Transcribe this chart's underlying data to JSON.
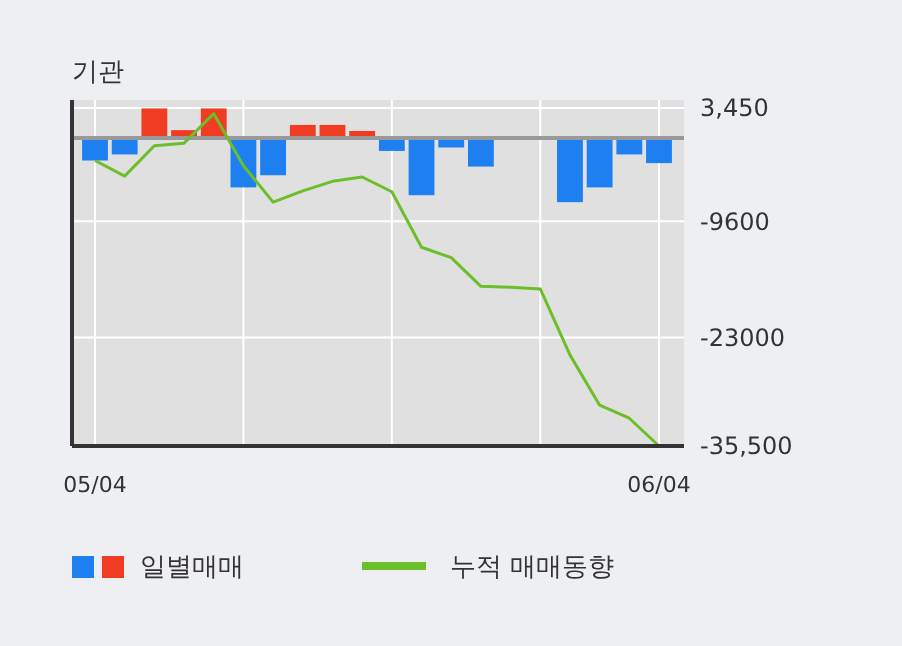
{
  "chart_data": {
    "type": "bar",
    "title": "기관",
    "categories": [
      "05/04",
      null,
      null,
      null,
      null,
      null,
      null,
      null,
      null,
      null,
      null,
      null,
      null,
      null,
      null,
      null,
      null,
      null,
      null,
      "06/04"
    ],
    "series": [
      {
        "name": "일별매매",
        "colors": [
          "#1e7ff0",
          "#1e7ff0",
          "#f03c22",
          "#f03c22",
          "#f03c22",
          "#1e7ff0",
          "#1e7ff0",
          "#f03c22",
          "#f03c22",
          "#f03c22",
          "#1e7ff0",
          "#1e7ff0",
          "#1e7ff0",
          "#1e7ff0",
          "#1e7ff0",
          "#1e7ff0",
          "#1e7ff0",
          "#1e7ff0",
          "#1e7ff0",
          "#1e7ff0"
        ],
        "values": [
          -2600,
          -1900,
          3400,
          900,
          3400,
          -5700,
          -4300,
          1500,
          1500,
          800,
          -1500,
          -6600,
          -1100,
          -3300,
          0,
          0,
          -7400,
          -5700,
          -1900,
          -2900
        ]
      },
      {
        "name": "누적 매매동향",
        "type": "line",
        "color": "#6cbf2a",
        "values": [
          -2600,
          -4400,
          -900,
          -600,
          2800,
          -3200,
          -7400,
          -6100,
          -5000,
          -4500,
          -6200,
          -12600,
          -13800,
          -17100,
          -17200,
          -17400,
          -25000,
          -30800,
          -32300,
          -35500
        ]
      }
    ],
    "ylim": [
      -35500,
      3450
    ],
    "yticks": [
      {
        "value": 3450,
        "label": "3,450"
      },
      {
        "value": -9600,
        "label": "-9600"
      },
      {
        "value": -23000,
        "label": "-23000"
      },
      {
        "value": -35500,
        "label": "-35,500"
      }
    ],
    "ref_lines": [
      {
        "axis": "y",
        "value": 0,
        "color": "#999999"
      }
    ],
    "grid": true,
    "legend": "bottom",
    "marker": "none",
    "line_style": "solid"
  }
}
